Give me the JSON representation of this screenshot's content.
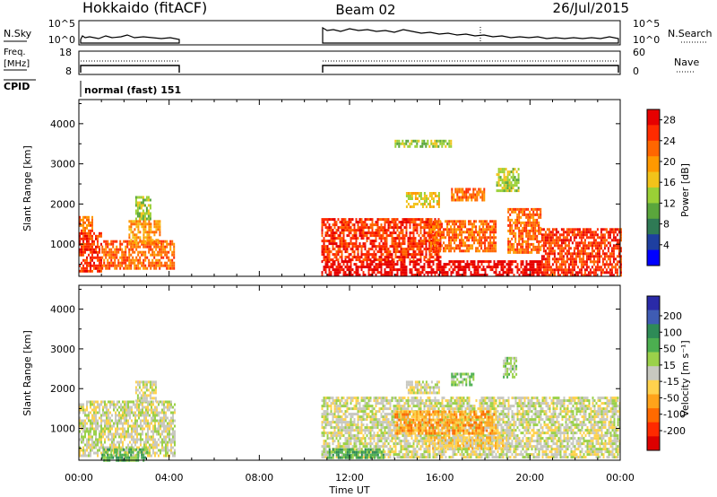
{
  "header": {
    "station": "Hokkaido (fitACF)",
    "beam": "Beam 02",
    "date": "26/Jul/2015"
  },
  "panels": {
    "nsky": {
      "label": "N.Sky",
      "right_label": "N.Search",
      "y_ticks_left": [
        "10^5",
        "10^0"
      ],
      "y_ticks_right": [
        "10^5",
        "10^0"
      ]
    },
    "freq": {
      "label_line1": "Freq.",
      "label_line2": "[MHz]",
      "right_label": "Nave",
      "y_ticks_left": [
        "18",
        "8"
      ],
      "y_ticks_right": [
        "60",
        "0"
      ]
    },
    "cpid": {
      "label": "CPID",
      "text": "normal (fast) 151"
    }
  },
  "colors": {
    "power": [
      "#0000ff",
      "#1e3fa0",
      "#2f7a55",
      "#5aa63c",
      "#9ad036",
      "#f2c31a",
      "#ff9900",
      "#ff6600",
      "#ff2b00",
      "#e60000"
    ],
    "velocity": [
      "#2a2aa8",
      "#3f5cb4",
      "#2e8b57",
      "#4caf50",
      "#9bd14a",
      "#c8c8c0",
      "#ffd24d",
      "#ffa31a",
      "#ff6a00",
      "#ff2a00",
      "#dd0000"
    ]
  },
  "chart_data": [
    {
      "type": "heatmap",
      "title": "",
      "xlabel": "Time UT",
      "ylabel": "Slant Range [km]",
      "x_ticks": [
        "00:00",
        "04:00",
        "08:00",
        "12:00",
        "16:00",
        "20:00",
        "00:00"
      ],
      "y_ticks": [
        "1000",
        "2000",
        "3000",
        "4000"
      ],
      "xlim": [
        0,
        24
      ],
      "ylim": [
        200,
        4600
      ],
      "colorbar": {
        "label": "Power [dB]",
        "ticks": [
          "4",
          "8",
          "12",
          "16",
          "20",
          "24",
          "28"
        ]
      },
      "data_gaps_ut": [
        [
          4.25,
          10.75
        ]
      ],
      "regions": [
        {
          "t0": 0.0,
          "t1": 1.0,
          "r0": 300,
          "r1": 1300,
          "level": 8
        },
        {
          "t0": 0.0,
          "t1": 0.6,
          "r0": 1300,
          "r1": 1700,
          "level": 7
        },
        {
          "t0": 1.0,
          "t1": 4.25,
          "r0": 400,
          "r1": 1100,
          "level": 7
        },
        {
          "t0": 2.2,
          "t1": 3.6,
          "r0": 1000,
          "r1": 1600,
          "level": 6
        },
        {
          "t0": 2.5,
          "t1": 3.2,
          "r0": 1600,
          "r1": 2200,
          "level": 4
        },
        {
          "t0": 10.75,
          "t1": 20.5,
          "r0": 250,
          "r1": 600,
          "level": 9
        },
        {
          "t0": 10.75,
          "t1": 16.0,
          "r0": 600,
          "r1": 1650,
          "level": 8
        },
        {
          "t0": 15.5,
          "t1": 18.5,
          "r0": 800,
          "r1": 1600,
          "level": 7
        },
        {
          "t0": 16.5,
          "t1": 18.0,
          "r0": 2100,
          "r1": 2400,
          "level": 7
        },
        {
          "t0": 14.5,
          "t1": 16.0,
          "r0": 1900,
          "r1": 2300,
          "level": 5
        },
        {
          "t0": 19.0,
          "t1": 20.5,
          "r0": 800,
          "r1": 1900,
          "level": 7
        },
        {
          "t0": 20.5,
          "t1": 24.0,
          "r0": 250,
          "r1": 1400,
          "level": 8
        },
        {
          "t0": 14.0,
          "t1": 16.5,
          "r0": 3400,
          "r1": 3600,
          "level": 4
        },
        {
          "t0": 18.5,
          "t1": 19.5,
          "r0": 2300,
          "r1": 2900,
          "level": 4
        }
      ]
    },
    {
      "type": "heatmap",
      "title": "",
      "xlabel": "Time UT",
      "ylabel": "Slant Range [km]",
      "x_ticks": [
        "00:00",
        "04:00",
        "08:00",
        "12:00",
        "16:00",
        "20:00",
        "00:00"
      ],
      "y_ticks": [
        "1000",
        "2000",
        "3000",
        "4000"
      ],
      "xlim": [
        0,
        24
      ],
      "ylim": [
        200,
        4600
      ],
      "colorbar": {
        "label": "Velocity [m s⁻¹]",
        "ticks": [
          "200",
          "100",
          "50",
          "15",
          "-15",
          "-50",
          "-100",
          "-200"
        ]
      },
      "data_gaps_ut": [
        [
          4.25,
          10.75
        ]
      ],
      "regions": [
        {
          "t0": 0.0,
          "t1": 4.25,
          "r0": 300,
          "r1": 1700,
          "level": 5
        },
        {
          "t0": 2.5,
          "t1": 3.4,
          "r0": 1700,
          "r1": 2200,
          "level": 5
        },
        {
          "t0": 1.0,
          "t1": 3.0,
          "r0": 200,
          "r1": 500,
          "level": 3
        },
        {
          "t0": 10.75,
          "t1": 24.0,
          "r0": 250,
          "r1": 1800,
          "level": 5
        },
        {
          "t0": 11.0,
          "t1": 13.5,
          "r0": 250,
          "r1": 500,
          "level": 3
        },
        {
          "t0": 14.0,
          "t1": 18.5,
          "r0": 900,
          "r1": 1450,
          "level": 7
        },
        {
          "t0": 16.5,
          "t1": 17.5,
          "r0": 2100,
          "r1": 2400,
          "level": 4
        },
        {
          "t0": 18.8,
          "t1": 19.4,
          "r0": 2300,
          "r1": 2800,
          "level": 4
        },
        {
          "t0": 14.5,
          "t1": 16.0,
          "r0": 1900,
          "r1": 2200,
          "level": 5
        },
        {
          "t0": 15.5,
          "t1": 19.0,
          "r0": 500,
          "r1": 800,
          "level": 6
        }
      ]
    }
  ]
}
